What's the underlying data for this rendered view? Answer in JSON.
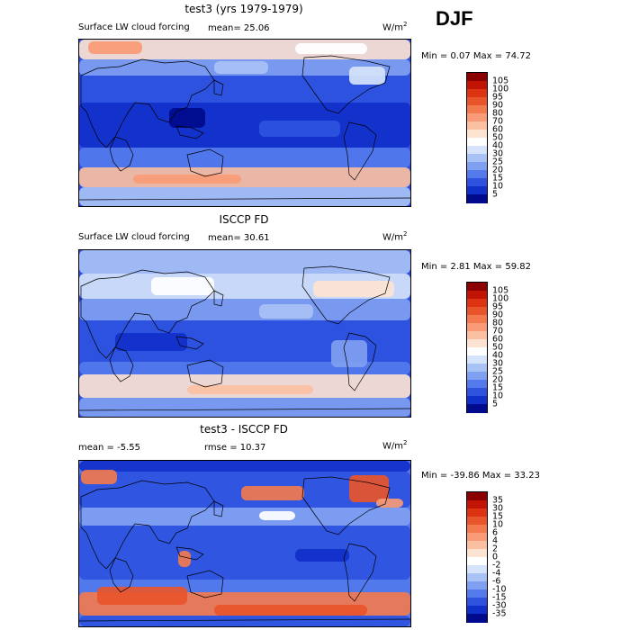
{
  "season": "DJF",
  "panels": [
    {
      "title": "test3 (yrs 1979-1979)",
      "subtitle": "Surface LW cloud forcing",
      "stat_left": "mean=  25.06",
      "stat_right": "",
      "units_base": "W/m",
      "units_exp": "2",
      "minmax": "Min =   0.07 Max =  74.72",
      "style": "model",
      "colorbar": {
        "labels": [
          "105",
          "100",
          "95",
          "90",
          "80",
          "70",
          "60",
          "50",
          "40",
          "30",
          "25",
          "20",
          "15",
          "10",
          "5"
        ],
        "colors": [
          "#8b0000",
          "#c21405",
          "#dc3412",
          "#e9552b",
          "#f27a4e",
          "#f89b76",
          "#fbc0a2",
          "#fde3d2",
          "#ffffff",
          "#d6e4fb",
          "#a9c2f6",
          "#7f9ff0",
          "#5379ea",
          "#2e52de",
          "#1130c9",
          "#000a8c"
        ]
      }
    },
    {
      "title": "ISCCP FD",
      "subtitle": "Surface LW cloud forcing",
      "stat_left": "mean=  30.61",
      "stat_right": "",
      "units_base": "W/m",
      "units_exp": "2",
      "minmax": "Min =   2.81 Max =  59.82",
      "style": "obs",
      "colorbar": {
        "labels": [
          "105",
          "100",
          "95",
          "90",
          "80",
          "70",
          "60",
          "50",
          "40",
          "30",
          "25",
          "20",
          "15",
          "10",
          "5"
        ],
        "colors": [
          "#8b0000",
          "#c21405",
          "#dc3412",
          "#e9552b",
          "#f27a4e",
          "#f89b76",
          "#fbc0a2",
          "#fde3d2",
          "#ffffff",
          "#d6e4fb",
          "#a9c2f6",
          "#7f9ff0",
          "#5379ea",
          "#2e52de",
          "#1130c9",
          "#000a8c"
        ]
      }
    },
    {
      "title": "test3 - ISCCP FD",
      "subtitle": "",
      "stat_left": "mean =   -5.55",
      "stat_right": "rmse =  10.37",
      "units_base": "W/m",
      "units_exp": "2",
      "minmax": "Min = -39.86 Max =  33.23",
      "style": "diff",
      "colorbar": {
        "labels": [
          "35",
          "30",
          "15",
          "10",
          "6",
          "4",
          "2",
          "0",
          "-2",
          "-4",
          "-6",
          "-10",
          "-15",
          "-30",
          "-35"
        ],
        "colors": [
          "#8b0000",
          "#c21405",
          "#dc3412",
          "#e9552b",
          "#f27a4e",
          "#f89b76",
          "#fbc0a2",
          "#fde3d2",
          "#ffffff",
          "#d6e4fb",
          "#a9c2f6",
          "#7f9ff0",
          "#5379ea",
          "#2e52de",
          "#1130c9",
          "#000a8c"
        ]
      }
    }
  ]
}
